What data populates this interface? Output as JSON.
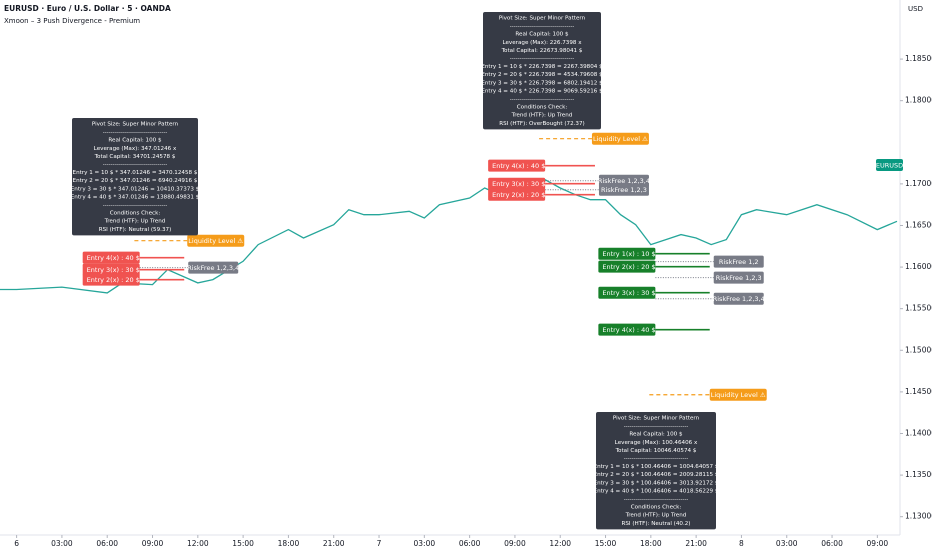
{
  "chart_data": {
    "type": "line",
    "title": "EURUSD · Euro / U.S. Dollar · 5 · OANDA",
    "subtitle": "Xmoon – 3 Push Divergence - Premium",
    "y_axis_label": "USD",
    "symbol_tag": "EURUSD",
    "x": [
      -1.1,
      0,
      3,
      6,
      7,
      9,
      10,
      12,
      13,
      15,
      16,
      18,
      19,
      21,
      22,
      23,
      24,
      26,
      27,
      28,
      30,
      31,
      32,
      33,
      34,
      35,
      36,
      37,
      38,
      39,
      40,
      41,
      42,
      43,
      44,
      45,
      46,
      47,
      48,
      49,
      51,
      53,
      55,
      57,
      58.3
    ],
    "series": [
      {
        "name": "EURUSD",
        "color": "#26a69a",
        "values": [
          1.1573,
          1.1573,
          1.1576,
          1.1569,
          1.1581,
          1.1579,
          1.1597,
          1.1581,
          1.1585,
          1.1607,
          1.1627,
          1.1645,
          1.1635,
          1.1651,
          1.1669,
          1.1663,
          1.1663,
          1.1667,
          1.1659,
          1.1675,
          1.1683,
          1.1695,
          1.1687,
          1.1687,
          1.1699,
          1.1705,
          1.1695,
          1.1687,
          1.1681,
          1.1681,
          1.1663,
          1.1651,
          1.1627,
          1.1633,
          1.1639,
          1.1635,
          1.1627,
          1.1633,
          1.1663,
          1.1669,
          1.1663,
          1.1675,
          1.1663,
          1.1645,
          1.1655
        ]
      }
    ],
    "xlim": [
      -1.1,
      58.5
    ],
    "xticks": [
      {
        "value": 0,
        "label": "6"
      },
      {
        "value": 3,
        "label": "03:00"
      },
      {
        "value": 6,
        "label": "06:00"
      },
      {
        "value": 9,
        "label": "09:00"
      },
      {
        "value": 12,
        "label": "12:00"
      },
      {
        "value": 15,
        "label": "15:00"
      },
      {
        "value": 18,
        "label": "18:00"
      },
      {
        "value": 21,
        "label": "21:00"
      },
      {
        "value": 24,
        "label": "7"
      },
      {
        "value": 27,
        "label": "03:00"
      },
      {
        "value": 30,
        "label": "06:00"
      },
      {
        "value": 33,
        "label": "09:00"
      },
      {
        "value": 36,
        "label": "12:00"
      },
      {
        "value": 39,
        "label": "15:00"
      },
      {
        "value": 42,
        "label": "18:00"
      },
      {
        "value": 45,
        "label": "21:00"
      },
      {
        "value": 48,
        "label": "8"
      },
      {
        "value": 51,
        "label": "03:00"
      },
      {
        "value": 54,
        "label": "06:00"
      },
      {
        "value": 57,
        "label": "09:00"
      }
    ],
    "ylim": [
      1.1278,
      1.1921
    ],
    "yticks": [
      {
        "value": 1.13,
        "label": "1.13000"
      },
      {
        "value": 1.135,
        "label": "1.13500"
      },
      {
        "value": 1.14,
        "label": "1.14000"
      },
      {
        "value": 1.145,
        "label": "1.14500"
      },
      {
        "value": 1.15,
        "label": "1.15000"
      },
      {
        "value": 1.155,
        "label": "1.15500"
      },
      {
        "value": 1.16,
        "label": "1.16000"
      },
      {
        "value": 1.165,
        "label": "1.16500"
      },
      {
        "value": 1.17,
        "label": "1.17000"
      },
      {
        "value": 1.18,
        "label": "1.18000"
      },
      {
        "value": 1.185,
        "label": "1.18500"
      }
    ],
    "grid": false,
    "signals": [
      {
        "color": "#f05350",
        "box": [
          "Pivot Size: Super Minor Pattern",
          "--------------------------------",
          "Real Capital: 100 $",
          "Leverage (Max): 347.01246 x",
          "Total Capital: 34701.24578 $",
          "--------------------------------",
          "Entry 1 = 10 $ * 347.01246 = 3470.12458 $",
          "Entry 2 = 20 $ * 347.01246 = 6940.24916 $",
          "Entry 3 = 30 $ * 347.01246 = 10410.37373 $",
          "Entry 4 = 40 $ * 347.01246 = 13880.49831 $",
          "--------------------------------",
          "Conditions Check:",
          "Trend (HTF): Up Trend",
          "RSI (HTF): Neutral (59.37)"
        ],
        "liquidity": {
          "label": "Liquidity Level ⚠",
          "price": 1.16317,
          "x": [
            7.8,
            11.3
          ]
        },
        "entry_x": [
          8.15,
          11.1
        ],
        "entries": [
          {
            "label": "Entry 4(x) : 40 $",
            "price": 1.16113
          },
          {
            "label": "Entry 3(x) : 30 $",
            "price": 1.15969
          },
          {
            "label": "Entry 2(x) : 20 $",
            "price": 1.15849
          }
        ],
        "riskfree": [
          {
            "label": "RiskFree 1,2,3,4",
            "price": 1.15993
          }
        ]
      },
      {
        "color": "#f05350",
        "box": [
          "Pivot Size: Super Minor Pattern",
          "--------------------------------",
          "Real Capital: 100 $",
          "Leverage (Max): 226.7398 x",
          "Total Capital: 22673.98041 $",
          "--------------------------------",
          "Entry 1 = 10 $ * 226.7398 = 2267.39804 $",
          "Entry 2 = 20 $ * 226.7398 = 4534.79608 $",
          "Entry 3 = 30 $ * 226.7398 = 6802.19412 $",
          "Entry 4 = 40 $ * 226.7398 = 9069.59216 $",
          "--------------------------------",
          "Conditions Check:",
          "Trend (HTF): Up Trend",
          "RSI (HTF): OverBought (72.37)"
        ],
        "liquidity": {
          "label": "Liquidity Level ⚠",
          "price": 1.17543,
          "x": [
            34.6,
            38.1
          ]
        },
        "entry_x": [
          35.0,
          38.3
        ],
        "entries": [
          {
            "label": "Entry 4(x) : 40 $",
            "price": 1.17219
          },
          {
            "label": "Entry 3(x) : 30 $",
            "price": 1.17002
          },
          {
            "label": "Entry 2(x) : 20 $",
            "price": 1.1687
          }
        ],
        "riskfree": [
          {
            "label": "RiskFree 1,2,3,4",
            "price": 1.17038
          },
          {
            "label": "RiskFree 1,2,3",
            "price": 1.1693
          }
        ]
      },
      {
        "color": "#17802a",
        "box": [
          "Pivot Size: Super Minor Pattern",
          "--------------------------------",
          "Real Capital: 100 $",
          "Leverage (Max): 100.46406 x",
          "Total Capital: 10046.40574 $",
          "--------------------------------",
          "Entry 1 = 10 $ * 100.46406 = 1004.64057 $",
          "Entry 2 = 20 $ * 100.46406 = 2009.28115 $",
          "Entry 3 = 30 $ * 100.46406 = 3013.92172 $",
          "Entry 4 = 40 $ * 100.46406 = 4018.56229 $",
          "--------------------------------",
          "Conditions Check:",
          "Trend (HTF): Up Trend",
          "RSI (HTF): Neutral (40.2)"
        ],
        "liquidity": {
          "label": "Liquidity Level ⚠",
          "price": 1.14466,
          "x": [
            41.9,
            45.9
          ]
        },
        "entry_x": [
          42.3,
          45.9
        ],
        "entries": [
          {
            "label": "Entry 1(x) : 10 $",
            "price": 1.16161
          },
          {
            "label": "Entry 2(x) : 20 $",
            "price": 1.16005
          },
          {
            "label": "Entry 3(x) : 30 $",
            "price": 1.15692
          },
          {
            "label": "Entry 4(x) : 40 $",
            "price": 1.15248
          }
        ],
        "riskfree": [
          {
            "label": "RiskFree 1,2",
            "price": 1.16065
          },
          {
            "label": "RiskFree 1,2,3",
            "price": 1.15873
          },
          {
            "label": "RiskFree 1,2,3,4",
            "price": 1.1562
          }
        ]
      }
    ]
  }
}
